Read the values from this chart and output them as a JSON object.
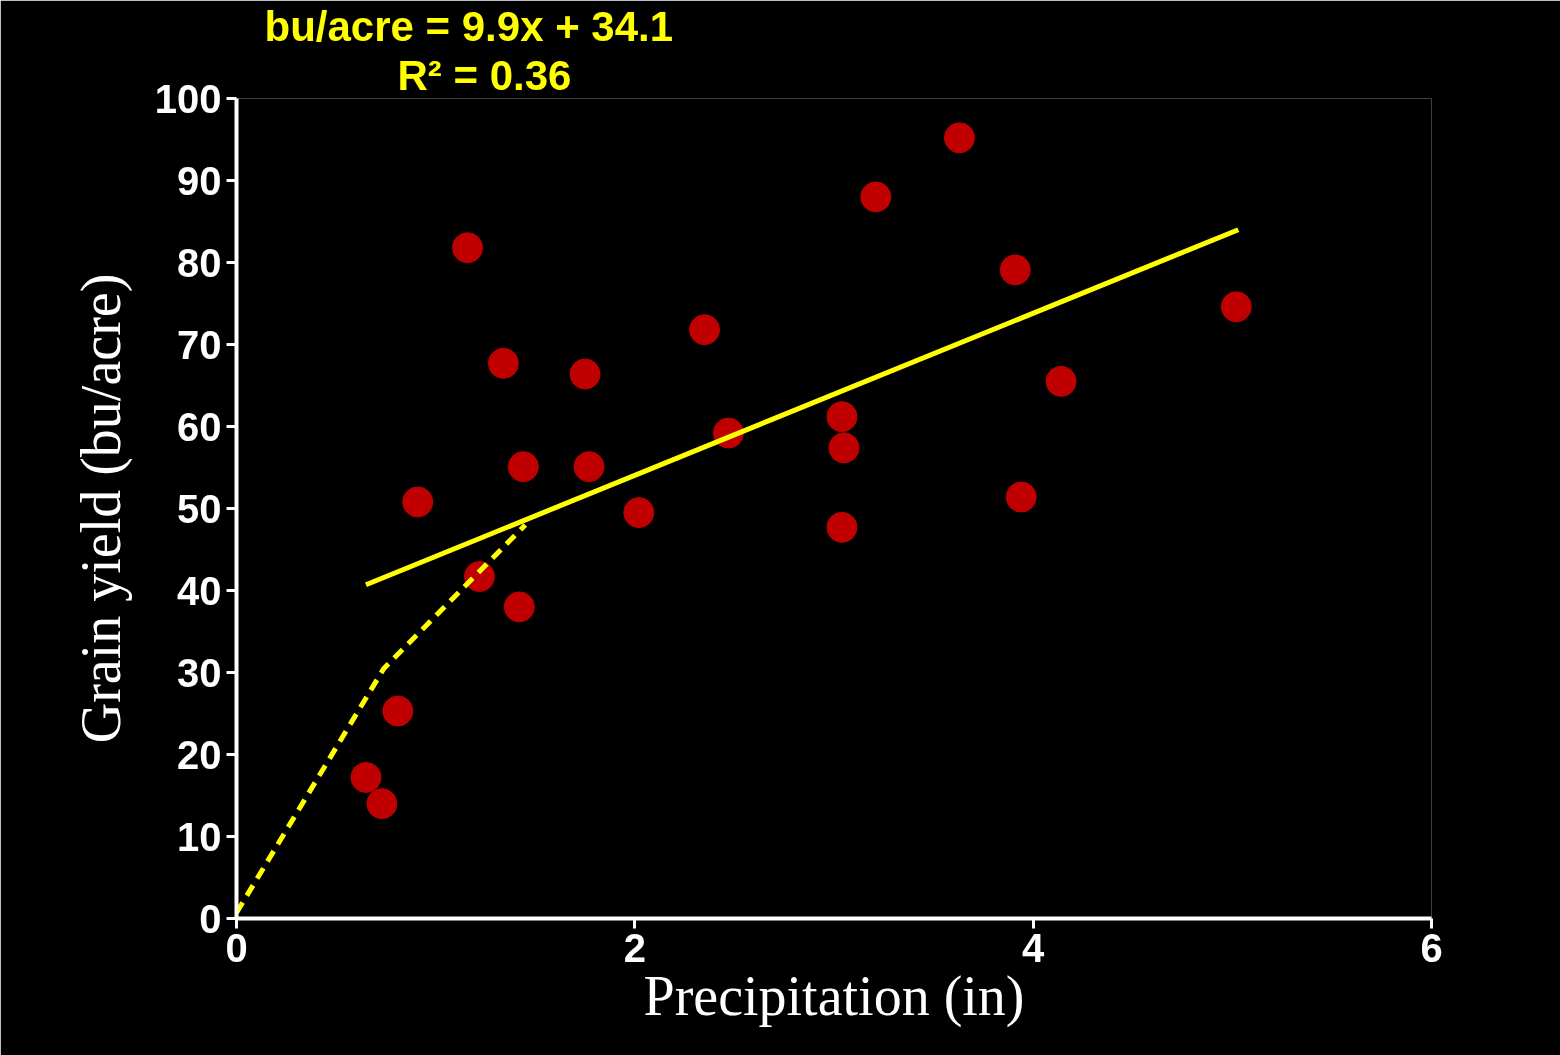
{
  "chart_data": {
    "type": "scatter",
    "xlabel": "Precipitation (in)",
    "ylabel": "Grain yield (bu/acre)",
    "annotations": [
      "bu/acre = 9.9x + 34.1",
      "R² = 0.36"
    ],
    "xlim": [
      0,
      6
    ],
    "xticks": [
      0,
      2,
      4,
      6
    ],
    "ylim": [
      0,
      100
    ],
    "yticks": [
      0,
      10,
      20,
      30,
      40,
      50,
      60,
      70,
      80,
      90,
      100
    ],
    "grid": false,
    "series": [
      {
        "color": "#c00000",
        "marker": "circle",
        "x": [
          0.65,
          0.73,
          0.81,
          0.91,
          1.16,
          1.22,
          1.34,
          1.42,
          1.44,
          1.75,
          1.77,
          2.02,
          2.35,
          2.47,
          3.04,
          3.05,
          3.04,
          3.21,
          3.63,
          3.91,
          3.94,
          4.14,
          5.02
        ],
        "values": [
          17.2,
          14.0,
          25.3,
          50.8,
          81.8,
          41.7,
          67.7,
          38.0,
          55.1,
          66.4,
          55.1,
          49.5,
          71.8,
          59.2,
          61.2,
          57.4,
          47.7,
          88.0,
          95.2,
          79.1,
          51.4,
          65.5,
          74.6
        ]
      },
      {
        "type": "line",
        "color": "#ffff00",
        "line_style": "solid",
        "x": [
          0.65,
          5.03
        ],
        "values": [
          40.7,
          84.0
        ]
      },
      {
        "type": "line",
        "color": "#ffff00",
        "line_style": "dashed",
        "x": [
          0,
          0.74,
          1.45
        ],
        "values": [
          0.7,
          30.5,
          48.0
        ]
      }
    ]
  }
}
